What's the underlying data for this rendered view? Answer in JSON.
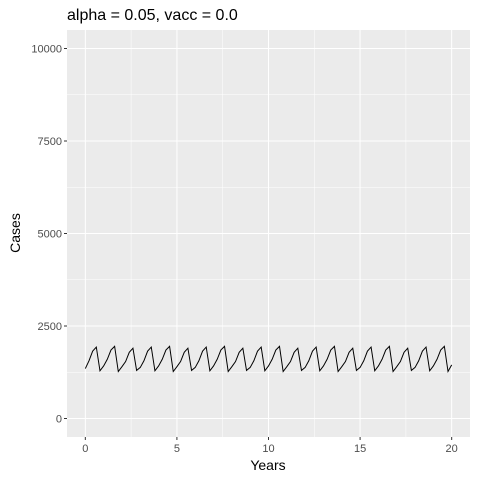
{
  "chart_data": {
    "type": "line",
    "title": "alpha = 0.05, vacc = 0.0",
    "xlabel": "Years",
    "ylabel": "Cases",
    "x": [
      0,
      0.2,
      0.4,
      0.6,
      0.8,
      1,
      1.2,
      1.4,
      1.6,
      1.8,
      2,
      2.2,
      2.4,
      2.6,
      2.8,
      3,
      3.2,
      3.4,
      3.6,
      3.8,
      4,
      4.2,
      4.4,
      4.6,
      4.8,
      5,
      5.2,
      5.4,
      5.6,
      5.8,
      6,
      6.2,
      6.4,
      6.6,
      6.8,
      7,
      7.2,
      7.4,
      7.6,
      7.8,
      8,
      8.2,
      8.4,
      8.6,
      8.8,
      9,
      9.2,
      9.4,
      9.6,
      9.8,
      10,
      10.2,
      10.4,
      10.6,
      10.8,
      11,
      11.2,
      11.4,
      11.6,
      11.8,
      12,
      12.2,
      12.4,
      12.6,
      12.8,
      13,
      13.2,
      13.4,
      13.6,
      13.8,
      14,
      14.2,
      14.4,
      14.6,
      14.8,
      15,
      15.2,
      15.4,
      15.6,
      15.8,
      16,
      16.2,
      16.4,
      16.6,
      16.8,
      17,
      17.2,
      17.4,
      17.6,
      17.8,
      18,
      18.2,
      18.4,
      18.6,
      18.8,
      19,
      19.2,
      19.4,
      19.6,
      19.8,
      20
    ],
    "series": [
      {
        "name": "Cases",
        "color": "#000000",
        "values": [
          1350,
          1560,
          1820,
          1930,
          1290,
          1420,
          1600,
          1850,
          1950,
          1270,
          1400,
          1540,
          1790,
          1900,
          1300,
          1380,
          1560,
          1820,
          1930,
          1290,
          1420,
          1600,
          1850,
          1950,
          1270,
          1400,
          1540,
          1790,
          1900,
          1300,
          1380,
          1560,
          1820,
          1930,
          1290,
          1420,
          1600,
          1850,
          1950,
          1270,
          1400,
          1540,
          1790,
          1900,
          1300,
          1380,
          1560,
          1820,
          1930,
          1290,
          1420,
          1600,
          1850,
          1950,
          1270,
          1400,
          1540,
          1790,
          1900,
          1300,
          1380,
          1560,
          1820,
          1930,
          1290,
          1420,
          1600,
          1850,
          1950,
          1270,
          1400,
          1540,
          1790,
          1900,
          1300,
          1380,
          1560,
          1820,
          1930,
          1290,
          1420,
          1600,
          1850,
          1950,
          1270,
          1400,
          1540,
          1790,
          1900,
          1300,
          1380,
          1560,
          1820,
          1930,
          1290,
          1420,
          1600,
          1850,
          1950,
          1270,
          1450
        ]
      }
    ],
    "xlim": [
      -1,
      21
    ],
    "xticks": [
      0,
      5,
      10,
      15,
      20
    ],
    "ylim": [
      -500,
      10500
    ],
    "yticks": [
      0,
      2500,
      5000,
      7500,
      10000
    ],
    "grid": true
  }
}
